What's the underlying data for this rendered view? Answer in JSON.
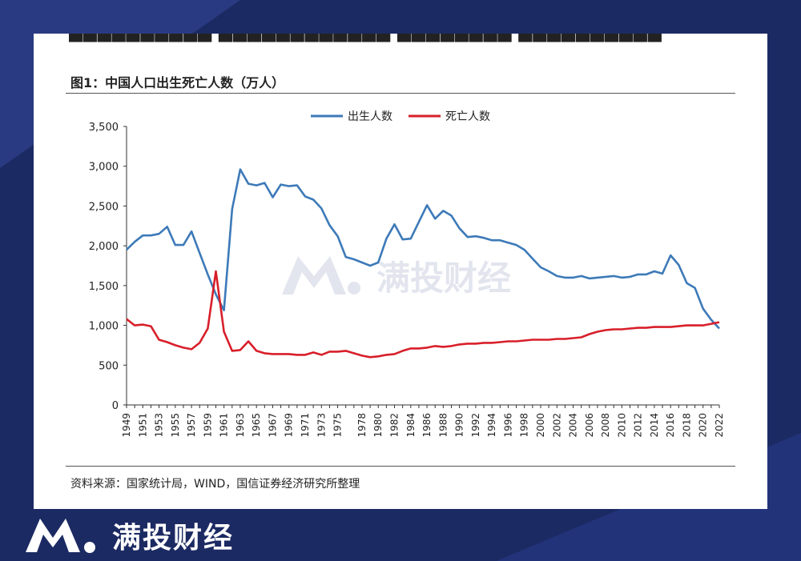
{
  "figure": {
    "title": "图1：中国人口出生死亡人数（万人）",
    "source": "资料来源：国家统计局，WIND，国信证券经济研究所整理",
    "watermark_text": "满投财经"
  },
  "footer": {
    "brand": "满投财经"
  },
  "colors": {
    "birth": "#3d7ab8",
    "death": "#d81f2a",
    "background": "#1c2a63"
  },
  "chart_data": {
    "type": "line",
    "legend_position": "top-center",
    "grid": false,
    "ylim": [
      0,
      3500
    ],
    "yticks": [
      0,
      500,
      1000,
      1500,
      2000,
      2500,
      3000,
      3500
    ],
    "ytick_labels": [
      "0",
      "500",
      "1,000",
      "1,500",
      "2,000",
      "2,500",
      "3,000",
      "3,500"
    ],
    "xtick_labels": [
      "1949",
      "1951",
      "1953",
      "1955",
      "1957",
      "1959",
      "1961",
      "1963",
      "1965",
      "1967",
      "1969",
      "1971",
      "1973",
      "1975",
      "1978",
      "1980",
      "1982",
      "1984",
      "1986",
      "1988",
      "1990",
      "1992",
      "1994",
      "1996",
      "1998",
      "2000",
      "2002",
      "2004",
      "2006",
      "2008",
      "2010",
      "2012",
      "2014",
      "2016",
      "2018",
      "2020",
      "2022"
    ],
    "x": [
      1949,
      1950,
      1951,
      1952,
      1953,
      1954,
      1955,
      1956,
      1957,
      1958,
      1959,
      1960,
      1961,
      1962,
      1963,
      1964,
      1965,
      1966,
      1967,
      1968,
      1969,
      1970,
      1971,
      1972,
      1973,
      1974,
      1975,
      1976,
      1977,
      1978,
      1979,
      1980,
      1981,
      1982,
      1983,
      1984,
      1985,
      1986,
      1987,
      1988,
      1989,
      1990,
      1991,
      1992,
      1993,
      1994,
      1995,
      1996,
      1997,
      1998,
      1999,
      2000,
      2001,
      2002,
      2003,
      2004,
      2005,
      2006,
      2007,
      2008,
      2009,
      2010,
      2011,
      2012,
      2013,
      2014,
      2015,
      2016,
      2017,
      2018,
      2019,
      2020,
      2021,
      2022
    ],
    "series": [
      {
        "name": "出生人数",
        "values": [
          1950,
          2050,
          2130,
          2130,
          2150,
          2240,
          2010,
          2010,
          2180,
          1910,
          1640,
          1390,
          1190,
          2460,
          2960,
          2780,
          2760,
          2790,
          2610,
          2770,
          2750,
          2760,
          2620,
          2580,
          2470,
          2260,
          2120,
          1860,
          1830,
          1790,
          1750,
          1790,
          2090,
          2270,
          2080,
          2090,
          2300,
          2510,
          2340,
          2440,
          2380,
          2220,
          2110,
          2120,
          2100,
          2070,
          2070,
          2040,
          2010,
          1950,
          1840,
          1730,
          1680,
          1620,
          1600,
          1600,
          1620,
          1590,
          1600,
          1610,
          1620,
          1600,
          1610,
          1640,
          1640,
          1680,
          1650,
          1880,
          1760,
          1530,
          1470,
          1210,
          1070,
          960
        ]
      },
      {
        "name": "死亡人数",
        "values": [
          1080,
          1000,
          1010,
          990,
          820,
          790,
          750,
          720,
          700,
          780,
          960,
          1680,
          920,
          680,
          690,
          800,
          680,
          650,
          640,
          640,
          640,
          630,
          630,
          660,
          630,
          670,
          670,
          680,
          650,
          620,
          600,
          610,
          630,
          640,
          680,
          710,
          710,
          720,
          740,
          730,
          740,
          760,
          770,
          770,
          780,
          780,
          790,
          800,
          800,
          810,
          820,
          820,
          820,
          830,
          830,
          840,
          850,
          890,
          920,
          940,
          950,
          950,
          960,
          970,
          970,
          980,
          980,
          980,
          990,
          1000,
          1000,
          1000,
          1020,
          1040
        ]
      }
    ]
  }
}
